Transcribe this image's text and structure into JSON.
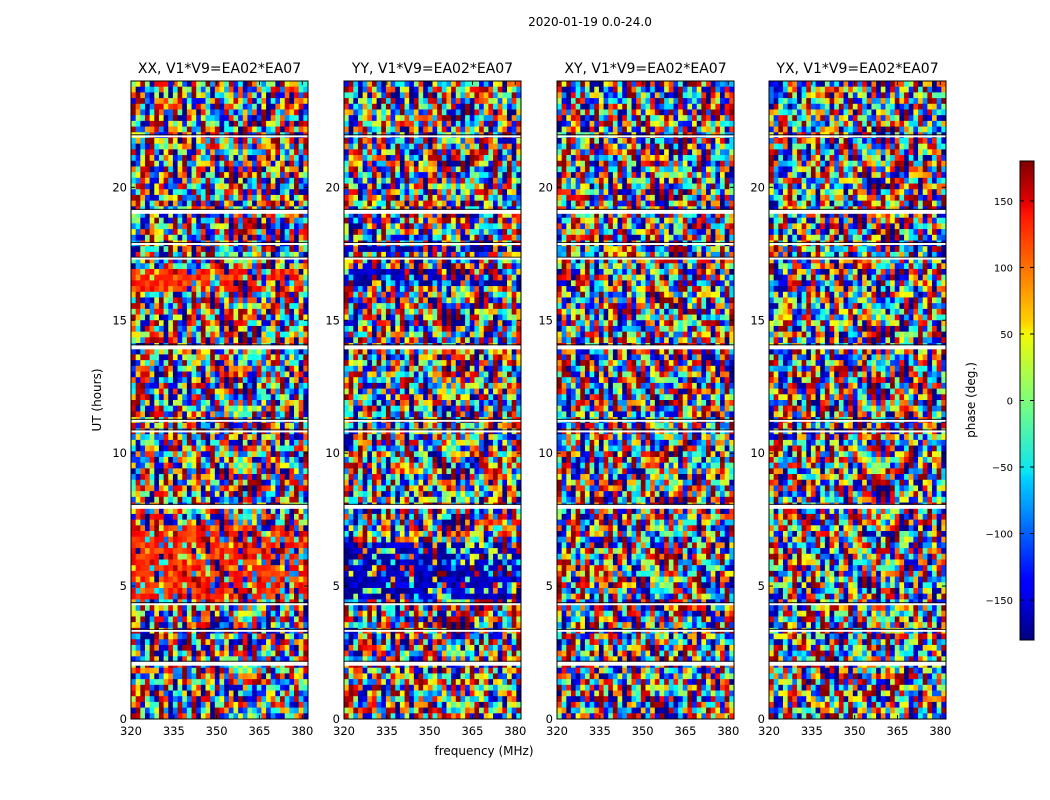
{
  "figure": {
    "suptitle": "2020-01-19 0.0-24.0",
    "xlabel": "frequency (MHz)",
    "ylabel": "UT (hours)"
  },
  "chart_data": {
    "type": "heatmap",
    "title": "2020-01-19 0.0-24.0",
    "xlabel": "frequency (MHz)",
    "ylabel": "UT (hours)",
    "xlim": [
      320,
      382
    ],
    "ylim": [
      0,
      24
    ],
    "xticks": [
      320,
      335,
      350,
      365,
      380
    ],
    "yticks": [
      0,
      5,
      10,
      15,
      20
    ],
    "value_label": "phase (deg.)",
    "value_range": [
      -180,
      180
    ],
    "colorbar_ticks": [
      150,
      100,
      50,
      0,
      -50,
      -100,
      -150
    ],
    "colormap": "jet",
    "panels": [
      {
        "title": "XX, V1*V9=EA02*EA07",
        "dominant_phase_deg": [
          {
            "ut_range": [
              4.4,
              7.3
            ],
            "phase": 120
          },
          {
            "ut_range": [
              16.0,
              16.9
            ],
            "phase": 120
          }
        ]
      },
      {
        "title": "YY, V1*V9=EA02*EA07",
        "dominant_phase_deg": [
          {
            "ut_range": [
              4.4,
              6.6
            ],
            "phase": -160
          },
          {
            "ut_range": [
              16.3,
              16.9
            ],
            "phase": -160
          },
          {
            "ut_range": [
              17.5,
              17.8
            ],
            "phase": -160
          }
        ]
      },
      {
        "title": "XY, V1*V9=EA02*EA07",
        "dominant_phase_deg": []
      },
      {
        "title": "YX, V1*V9=EA02*EA07",
        "dominant_phase_deg": []
      }
    ],
    "flagged_ut_gaps": [
      2.1,
      3.3,
      4.3,
      8.0,
      10.8,
      11.2,
      14.0,
      17.3,
      17.85,
      19.1,
      21.9
    ]
  }
}
